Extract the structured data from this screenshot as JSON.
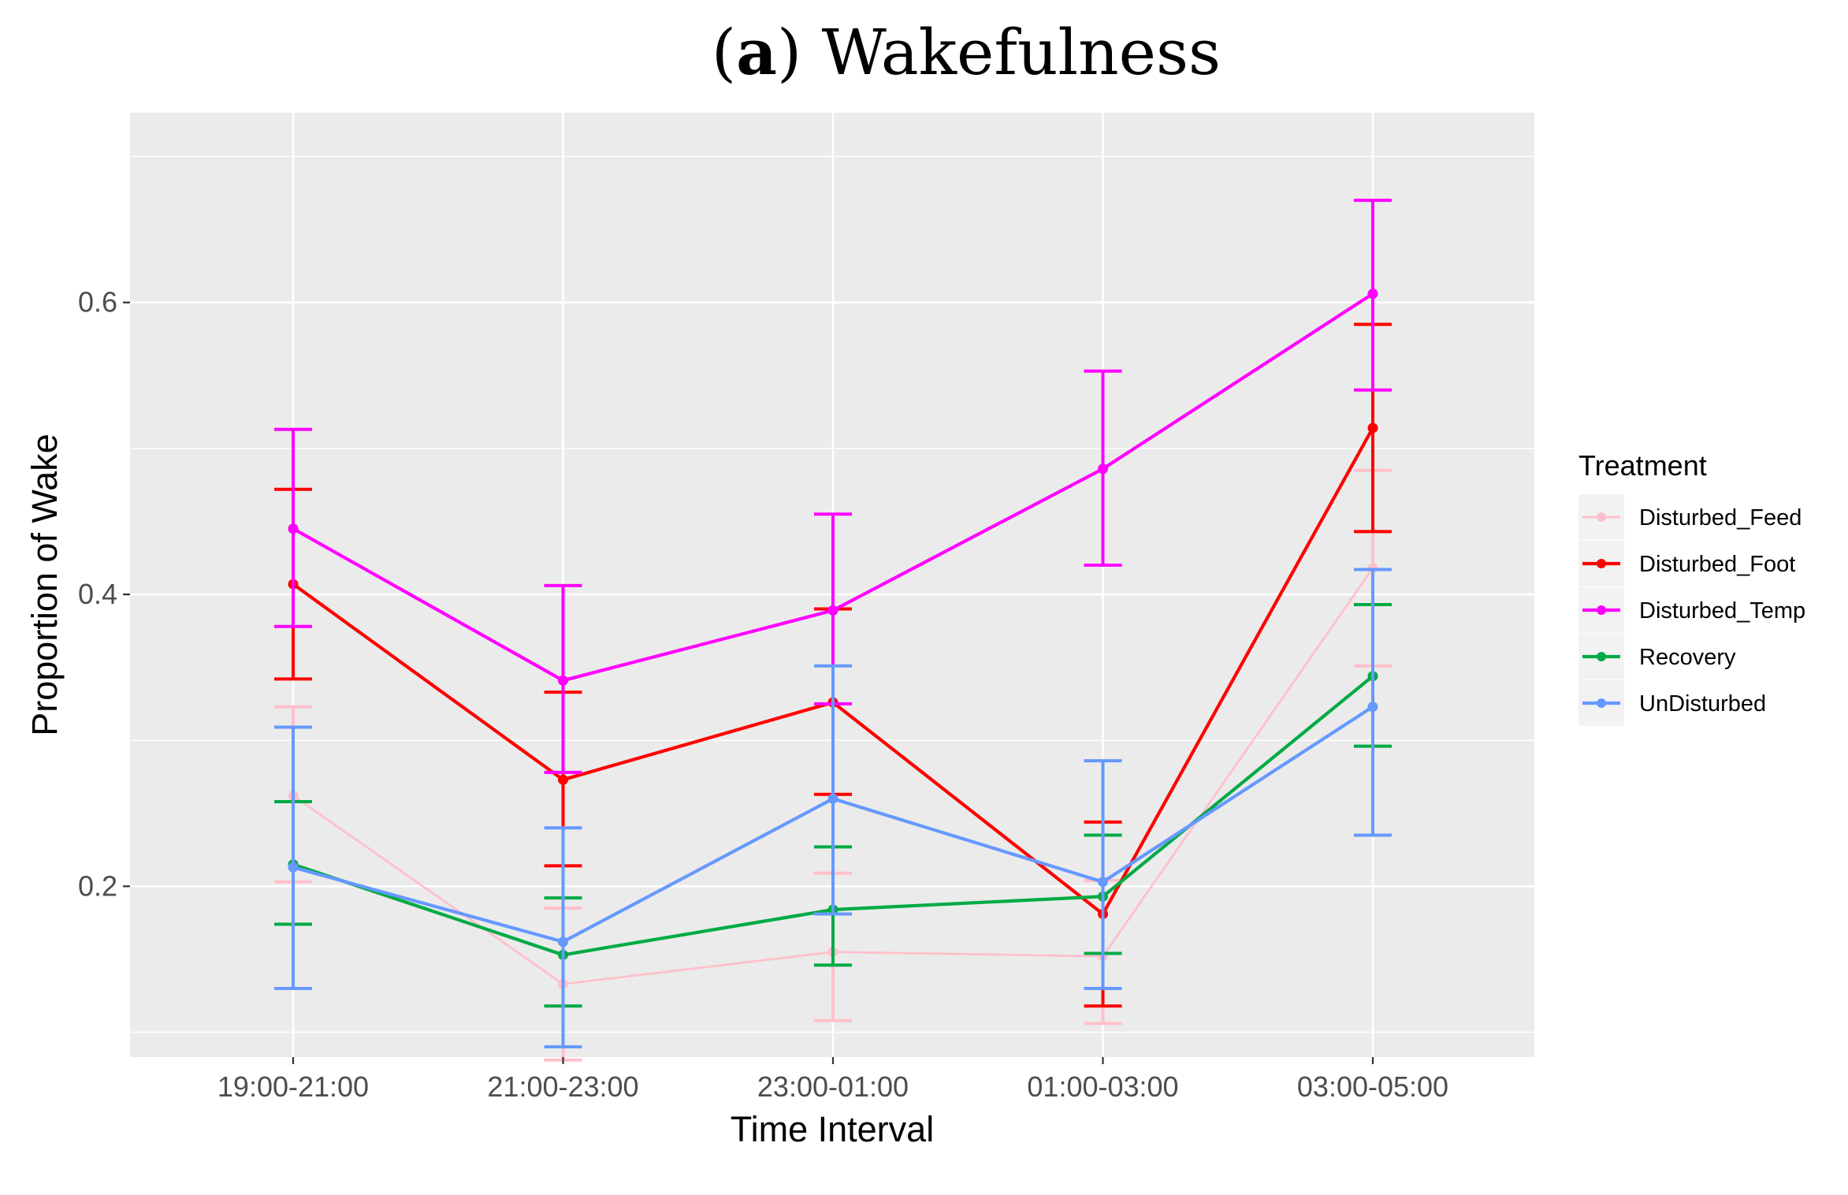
{
  "chart_data": {
    "type": "line",
    "title_prefix": "(",
    "title_letter": "a",
    "title_suffix": ") Wakefulness",
    "xlabel": "Time Interval",
    "ylabel": "Proportion of Wake",
    "categories": [
      "19:00-21:00",
      "21:00-23:00",
      "23:00-01:00",
      "01:00-03:00",
      "03:00-05:00"
    ],
    "ylim": [
      0.083,
      0.73
    ],
    "yticks": [
      0.2,
      0.4,
      0.6
    ],
    "ytick_labels": [
      "0.2",
      "0.4",
      "0.6"
    ],
    "legend_title": "Treatment",
    "legend_position": "right",
    "series": [
      {
        "name": "Disturbed_Feed",
        "color": "#FFC0CB",
        "values": [
          0.262,
          0.133,
          0.155,
          0.152,
          0.418
        ],
        "lower": [
          0.203,
          0.081,
          0.108,
          0.106,
          0.351
        ],
        "upper": [
          0.323,
          0.185,
          0.209,
          0.204,
          0.485
        ],
        "thin": true
      },
      {
        "name": "Disturbed_Foot",
        "color": "#FF0000",
        "values": [
          0.407,
          0.273,
          0.326,
          0.181,
          0.514
        ],
        "lower": [
          0.342,
          0.214,
          0.263,
          0.118,
          0.443
        ],
        "upper": [
          0.472,
          0.333,
          0.39,
          0.244,
          0.585
        ],
        "thin": false
      },
      {
        "name": "Disturbed_Temp",
        "color": "#FF00FF",
        "values": [
          0.445,
          0.341,
          0.389,
          0.486,
          0.606
        ],
        "lower": [
          0.378,
          0.278,
          0.325,
          0.42,
          0.54
        ],
        "upper": [
          0.513,
          0.406,
          0.455,
          0.553,
          0.67
        ],
        "thin": false
      },
      {
        "name": "Recovery",
        "color": "#00AA44",
        "values": [
          0.215,
          0.153,
          0.184,
          0.193,
          0.344
        ],
        "lower": [
          0.174,
          0.118,
          0.146,
          0.154,
          0.296
        ],
        "upper": [
          0.258,
          0.192,
          0.227,
          0.235,
          0.393
        ],
        "thin": false
      },
      {
        "name": "UnDisturbed",
        "color": "#6699FF",
        "values": [
          0.213,
          0.162,
          0.26,
          0.203,
          0.323
        ],
        "lower": [
          0.13,
          0.09,
          0.181,
          0.13,
          0.235
        ],
        "upper": [
          0.309,
          0.24,
          0.351,
          0.286,
          0.417
        ],
        "thin": false
      }
    ]
  }
}
